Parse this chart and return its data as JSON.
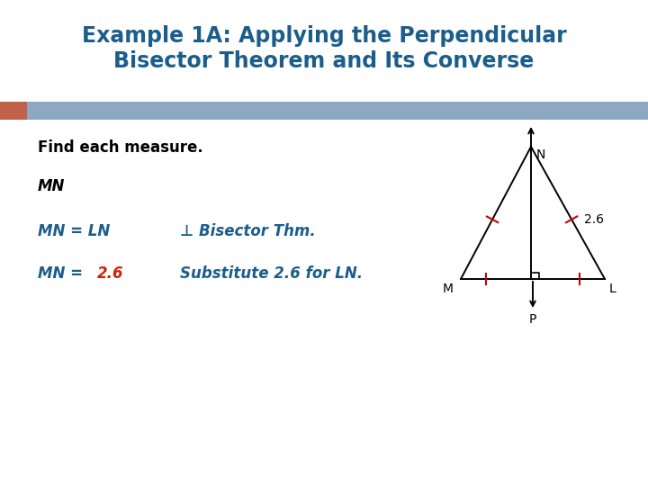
{
  "title_line1": "Example 1A: Applying the Perpendicular",
  "title_line2": "Bisector Theorem and Its Converse",
  "title_color": "#1B5E8B",
  "title_fontsize": 17,
  "header_bar_color": "#8EA8C3",
  "header_bar_left_accent_color": "#C0624A",
  "bg_color": "#FFFFFF",
  "text_color": "#000000",
  "find_text": "Find each measure.",
  "label_MN": "MN",
  "eq1_left": "MN = LN",
  "eq1_right": "⊥ Bisector Thm.",
  "eq2_left_prefix": "MN = ",
  "eq2_left_value": "2.6",
  "eq2_right": "Substitute 2.6 for LN.",
  "eq_color": "#1B5E8B",
  "eq_value_color": "#CC2200",
  "diagram_color": "#000000",
  "diagram_label_26": "2.6",
  "diagram_label_color": "#000000",
  "tick_color": "#CC0000"
}
